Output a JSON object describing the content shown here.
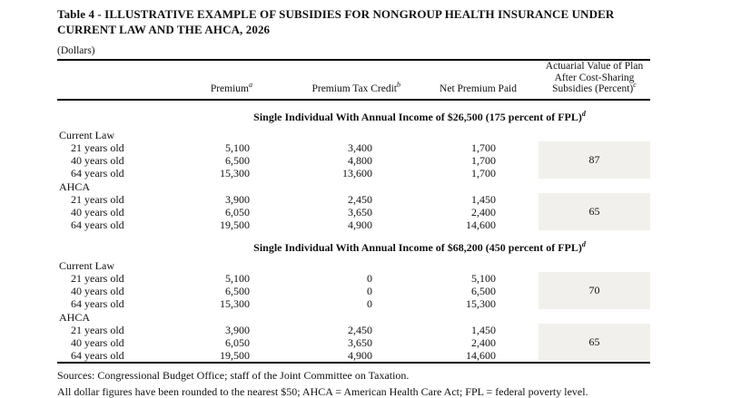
{
  "title": {
    "line1": "Table 4 - ILLUSTRATIVE EXAMPLE OF SUBSIDIES FOR NONGROUP HEALTH INSURANCE UNDER",
    "line2": "CURRENT LAW AND THE AHCA, 2026"
  },
  "units_label": "(Dollars)",
  "columns": {
    "premium": {
      "label": "Premium",
      "sup": "a"
    },
    "tax_credit": {
      "label": "Premium Tax Credit",
      "sup": "b"
    },
    "net_premium": {
      "label": "Net Premium Paid"
    },
    "actuarial": {
      "line1": "Actuarial Value of Plan",
      "line2": "After Cost-Sharing",
      "line3": "Subsidies (Percent)",
      "sup": "c"
    }
  },
  "sections": [
    {
      "header": "Single Individual With Annual Income of $26,500 (175 percent of FPL)",
      "header_sup": "d",
      "groups": [
        {
          "name": "Current Law",
          "actuarial_value": "87",
          "rows": [
            {
              "label": "21 years old",
              "premium": "5,100",
              "tax_credit": "3,400",
              "net_premium": "1,700"
            },
            {
              "label": "40 years old",
              "premium": "6,500",
              "tax_credit": "4,800",
              "net_premium": "1,700"
            },
            {
              "label": "64 years old",
              "premium": "15,300",
              "tax_credit": "13,600",
              "net_premium": "1,700"
            }
          ]
        },
        {
          "name": "AHCA",
          "actuarial_value": "65",
          "rows": [
            {
              "label": "21 years old",
              "premium": "3,900",
              "tax_credit": "2,450",
              "net_premium": "1,450"
            },
            {
              "label": "40 years old",
              "premium": "6,050",
              "tax_credit": "3,650",
              "net_premium": "2,400"
            },
            {
              "label": "64 years old",
              "premium": "19,500",
              "tax_credit": "4,900",
              "net_premium": "14,600"
            }
          ]
        }
      ]
    },
    {
      "header": "Single Individual With Annual Income of $68,200 (450 percent of FPL)",
      "header_sup": "d",
      "groups": [
        {
          "name": "Current Law",
          "actuarial_value": "70",
          "rows": [
            {
              "label": "21 years old",
              "premium": "5,100",
              "tax_credit": "0",
              "net_premium": "5,100"
            },
            {
              "label": "40 years old",
              "premium": "6,500",
              "tax_credit": "0",
              "net_premium": "6,500"
            },
            {
              "label": "64 years old",
              "premium": "15,300",
              "tax_credit": "0",
              "net_premium": "15,300"
            }
          ]
        },
        {
          "name": "AHCA",
          "actuarial_value": "65",
          "rows": [
            {
              "label": "21 years old",
              "premium": "3,900",
              "tax_credit": "2,450",
              "net_premium": "1,450"
            },
            {
              "label": "40 years old",
              "premium": "6,050",
              "tax_credit": "3,650",
              "net_premium": "2,400"
            },
            {
              "label": "64 years old",
              "premium": "19,500",
              "tax_credit": "4,900",
              "net_premium": "14,600"
            }
          ]
        }
      ]
    }
  ],
  "footnotes": {
    "sources": "Sources: Congressional Budget Office; staff of the Joint Committee on Taxation.",
    "notes": "All dollar figures have been rounded to the nearest $50; AHCA = American Health Care Act; FPL = federal poverty level."
  },
  "colors": {
    "shade": "#f2f0ed",
    "rule": "#000000",
    "text": "#111111"
  }
}
